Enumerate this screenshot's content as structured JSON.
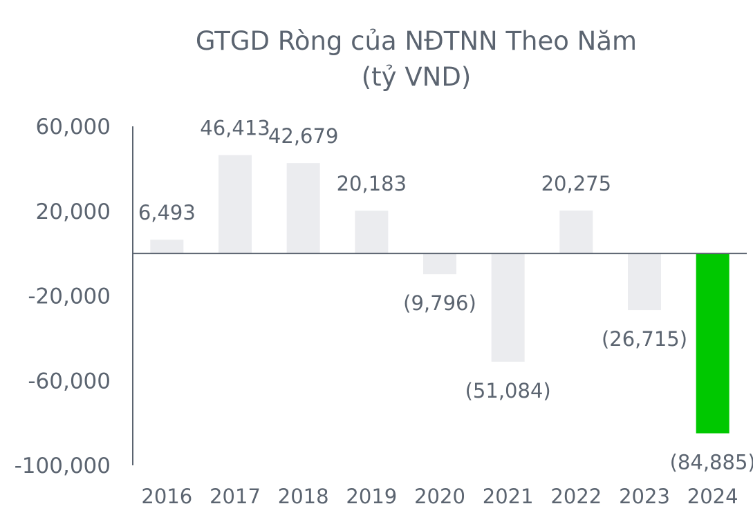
{
  "chart_data": {
    "type": "bar",
    "title_line1": "GTGD Ròng của NĐTNN Theo Năm",
    "title_line2": "(tỷ VND)",
    "categories": [
      "2016",
      "2017",
      "2018",
      "2019",
      "2020",
      "2021",
      "2022",
      "2023",
      "2024"
    ],
    "values": [
      6493,
      46413,
      42679,
      20183,
      -9796,
      -51084,
      20275,
      -26715,
      -84885
    ],
    "data_labels": [
      "6,493",
      "46,413",
      "42,679",
      "20,183",
      "(9,796)",
      "(51,084)",
      "20,275",
      "(26,715)",
      "(84,885)"
    ],
    "y_ticks": [
      60000,
      20000,
      -20000,
      -60000,
      -100000
    ],
    "y_tick_labels": [
      "60,000",
      "20,000",
      "-20,000",
      "-60,000",
      "-100,000"
    ],
    "ylim": [
      -100000,
      60000
    ],
    "grid": false,
    "legend": "none",
    "colors": {
      "default_bar": "#ebecef",
      "highlight_bar": "#00c800",
      "text": "#5b6470",
      "axis": "#5b6470"
    },
    "highlight_index": 8
  }
}
